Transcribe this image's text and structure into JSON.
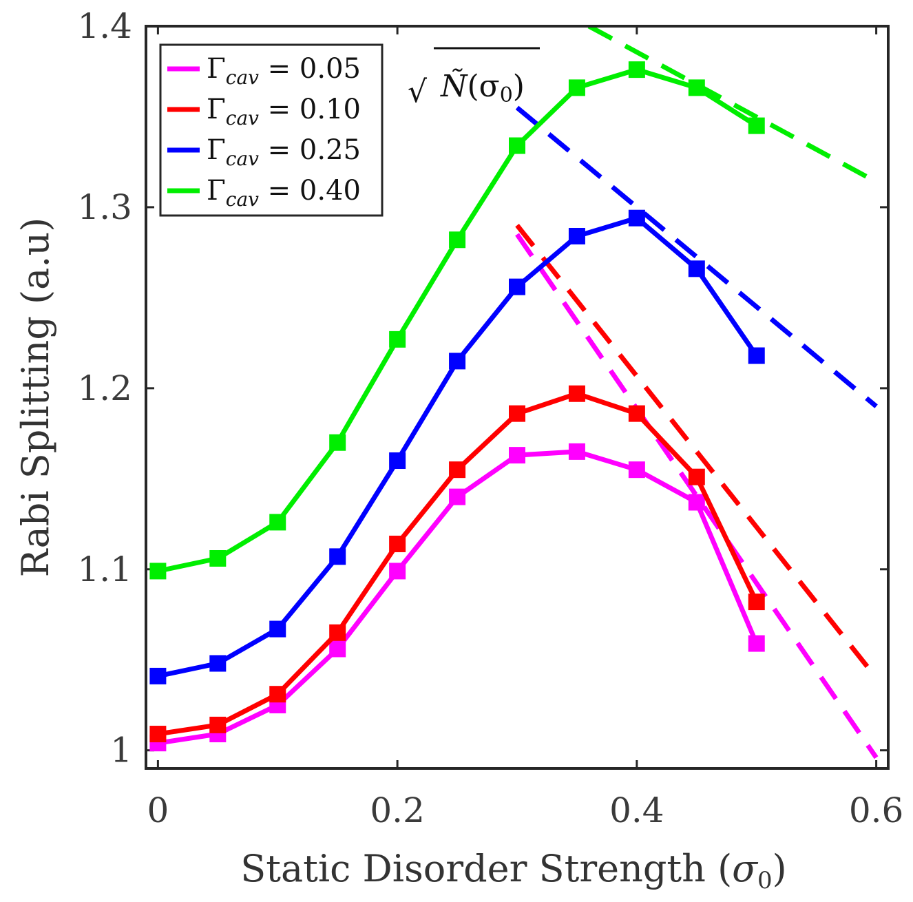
{
  "chart_data": {
    "type": "line",
    "xlabel_prefix": "Static Disorder Strength (",
    "xlabel_symbol": "σ",
    "xlabel_sub": "0",
    "xlabel_suffix": ")",
    "ylabel": "Rabi Splitting (a.u)",
    "xlim": [
      -0.01,
      0.61
    ],
    "ylim": [
      0.99,
      1.4
    ],
    "xticks": [
      0,
      0.2,
      0.4,
      0.6
    ],
    "xtick_labels": [
      "0",
      "0.2",
      "0.4",
      "0.6"
    ],
    "yticks": [
      1.0,
      1.1,
      1.2,
      1.3,
      1.4
    ],
    "ytick_labels": [
      "1",
      "1.1",
      "1.2",
      "1.3",
      "1.4"
    ],
    "grid": false,
    "legend_position": "top-left",
    "annotation": {
      "radical": "√",
      "symbol": "Ñ",
      "argument": "(σ",
      "argument_sub": "0",
      "argument_close": ")"
    },
    "x": [
      0,
      0.05,
      0.1,
      0.15,
      0.2,
      0.25,
      0.3,
      0.35,
      0.4,
      0.45,
      0.5
    ],
    "series": [
      {
        "name": "Γcav = 0.05",
        "gamma_symbol": "Γ",
        "gamma_sub": "cav",
        "gamma_value": "= 0.05",
        "color": "#ff00ff",
        "values": [
          1.004,
          1.009,
          1.025,
          1.056,
          1.099,
          1.14,
          1.163,
          1.165,
          1.155,
          1.137,
          1.059
        ],
        "fit": {
          "x": [
            0.3,
            0.6
          ],
          "y": [
            1.285,
            0.996
          ]
        }
      },
      {
        "name": "Γcav = 0.10",
        "gamma_symbol": "Γ",
        "gamma_sub": "cav",
        "gamma_value": "= 0.10",
        "color": "#ff0000",
        "values": [
          1.009,
          1.014,
          1.031,
          1.065,
          1.114,
          1.155,
          1.186,
          1.197,
          1.186,
          1.151,
          1.082
        ],
        "fit": {
          "x": [
            0.3,
            0.6
          ],
          "y": [
            1.29,
            1.04
          ]
        }
      },
      {
        "name": "Γcav = 0.25",
        "gamma_symbol": "Γ",
        "gamma_sub": "cav",
        "gamma_value": "= 0.25",
        "color": "#0000ff",
        "values": [
          1.041,
          1.048,
          1.067,
          1.107,
          1.16,
          1.215,
          1.256,
          1.284,
          1.294,
          1.266,
          1.218
        ],
        "fit": {
          "x": [
            0.3,
            0.6
          ],
          "y": [
            1.355,
            1.19
          ]
        }
      },
      {
        "name": "Γcav = 0.40",
        "gamma_symbol": "Γ",
        "gamma_sub": "cav",
        "gamma_value": "= 0.40",
        "color": "#00ee00",
        "values": [
          1.099,
          1.106,
          1.126,
          1.17,
          1.227,
          1.282,
          1.334,
          1.366,
          1.376,
          1.366,
          1.345
        ],
        "fit": {
          "x": [
            0.36,
            0.6
          ],
          "y": [
            1.4,
            1.314
          ]
        }
      }
    ]
  }
}
